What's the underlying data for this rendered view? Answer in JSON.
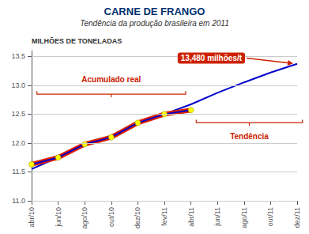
{
  "chart_data": {
    "type": "line",
    "title": "CARNE DE FRANGO",
    "subtitle": "Tendência da produção brasileira em 2011",
    "ylabel": "MILHÕES DE TONELADAS",
    "categories": [
      "abr/10",
      "jun/10",
      "ago/10",
      "out/10",
      "dez/10",
      "fev/11",
      "abr/11",
      "jun/11",
      "ago/11",
      "out/11",
      "dez/11"
    ],
    "series": [
      {
        "color": "#0000cc",
        "values": [
          11.55,
          11.75,
          11.95,
          12.13,
          12.33,
          12.5,
          12.67,
          12.87,
          13.05,
          13.22,
          13.37
        ]
      },
      {
        "color": "#dd2200",
        "marker": "circle",
        "colors": [
          "#ffff00",
          "#ffff00",
          "#ffff00",
          "#ffff00",
          "#ffff00",
          "#ffff00",
          "#ffff00",
          "#ffff00",
          "#ffff00",
          "#ffff00",
          "#ffff00"
        ],
        "values": [
          11.63,
          11.75,
          11.98,
          12.1,
          12.35,
          12.5,
          12.57,
          null,
          null,
          null,
          null
        ]
      }
    ],
    "ylim": [
      11.0,
      13.6
    ],
    "yticks": [
      {
        "value": 11.0,
        "label": "11.0"
      },
      11.5,
      {
        "value": 12.0,
        "label": "12.0"
      },
      12.5,
      {
        "value": 13.0,
        "label": "13.0"
      },
      13.5
    ],
    "grid": true,
    "annotations": [
      {
        "text": "13,480 milhões/t",
        "color": "#cc2200"
      },
      {
        "text": "Acumulado real",
        "color": "#cc2200"
      },
      {
        "text": "Tendência",
        "color": "#cc2200"
      }
    ]
  }
}
